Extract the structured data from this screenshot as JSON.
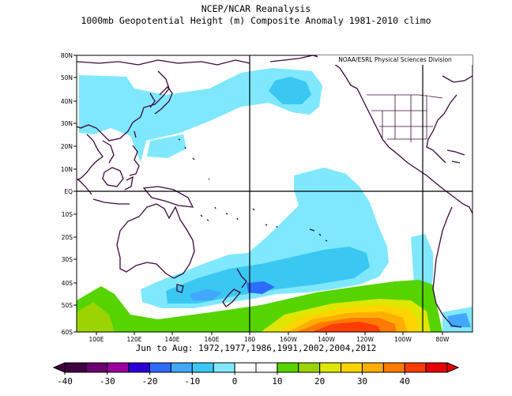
{
  "title_line1": "NCEP/NCAR Reanalysis",
  "title_line2": "1000mb Geopotential Height (m) Composite Anomaly 1981-2010 climo",
  "credit": "NOAA/ESRL Physical Sciences Division",
  "subtitle": "Jun to Aug: 1972,1977,1986,1991,2002,2004,2012",
  "lat_labels": [
    "80N",
    "50N",
    "40N",
    "30N",
    "20N",
    "10N",
    "EQ",
    "10S",
    "20S",
    "30S",
    "40S",
    "50S",
    "60S"
  ],
  "lon_labels": [
    "100E",
    "120E",
    "140E",
    "160E",
    "180",
    "160W",
    "140W",
    "120W",
    "100W",
    "80W"
  ],
  "colorbar": {
    "labels": [
      "-40",
      "-30",
      "-20",
      "-10",
      "0",
      "10",
      "20",
      "30",
      "40"
    ],
    "colors": [
      "#3f0042",
      "#6a006f",
      "#9c009c",
      "#2b00d8",
      "#2e6cff",
      "#41a7ff",
      "#3ac8f2",
      "#7fe8ff",
      "#ffffff",
      "#ffffff",
      "#55d400",
      "#9bd400",
      "#dfe600",
      "#ffd400",
      "#ffae00",
      "#ff7a00",
      "#ff3c00",
      "#e60000"
    ]
  }
}
